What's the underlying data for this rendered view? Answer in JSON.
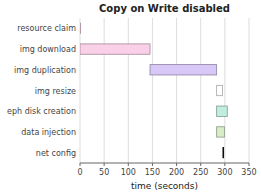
{
  "chart_data": {
    "type": "bar",
    "orientation": "horizontal",
    "title": "Copy on Write disabled",
    "x_label": "time (seconds)",
    "categories": [
      "resource claim",
      "img download",
      "img duplication",
      "img resize",
      "eph disk creation",
      "data injection",
      "net config"
    ],
    "starts": [
      0,
      0,
      145,
      283,
      283,
      283,
      296
    ],
    "values": [
      1,
      145,
      138,
      12,
      22,
      16,
      1.5
    ],
    "colors": [
      "#f9d0e8",
      "#f9d0e8",
      "#d8c8f8",
      "#ffffff",
      "#c0ede0",
      "#d8ecc8",
      "#111111"
    ],
    "xlim": [
      0,
      350
    ],
    "xticks": [
      0,
      50,
      100,
      150,
      200,
      250,
      300,
      350
    ],
    "grid": true
  }
}
